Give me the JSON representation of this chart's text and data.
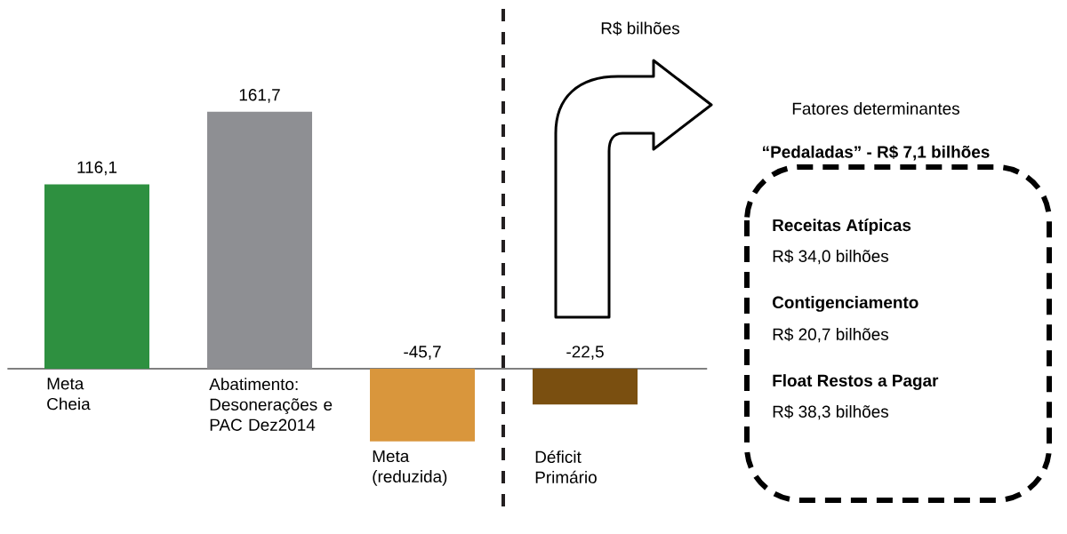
{
  "chart_data": {
    "type": "bar",
    "categories": [
      "Meta Cheia",
      "Abatimento: Desonerações e PAC Dez2014",
      "Meta (reduzida)",
      "Déficit Primário"
    ],
    "values": [
      116.1,
      161.7,
      -45.7,
      -22.5
    ],
    "colors": [
      "#2e9040",
      "#8e8f93",
      "#d9963c",
      "#7a4f10"
    ],
    "value_labels": [
      "116,1",
      "161,7",
      "-45,7",
      "-22,5"
    ],
    "annotations": [
      "R$ bilhões",
      "Fatores determinantes",
      "“Pedaladas” - R$ 7,1 bilhões",
      "Receitas Atípicas",
      "R$ 34,0 bilhões",
      "Contigenciamento",
      "R$ 20,7 bilhões",
      "Float Restos a Pagar",
      "R$ 38,3 bilhões"
    ]
  }
}
